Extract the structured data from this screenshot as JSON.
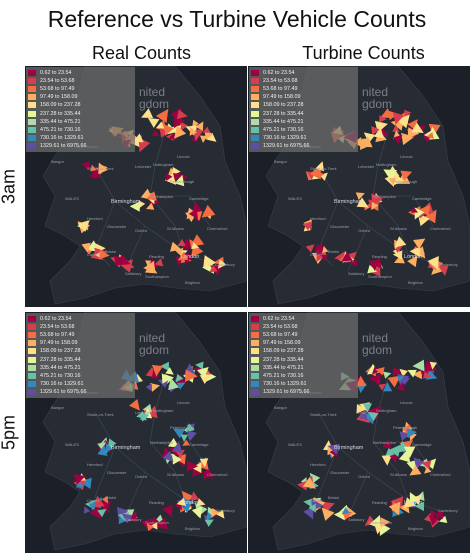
{
  "title": "Reference vs Turbine Vehicle Counts",
  "columns": [
    "Real Counts",
    "Turbine Counts"
  ],
  "rows": [
    "3am",
    "5pm"
  ],
  "legend": [
    {
      "label": "0.62 to 23.54",
      "color": "#9e0142"
    },
    {
      "label": "23.54 to 53.68",
      "color": "#d53e4f"
    },
    {
      "label": "53.68 to 97.49",
      "color": "#f46d43"
    },
    {
      "label": "97.49 to 158.09",
      "color": "#fdae61"
    },
    {
      "label": "158.09 to 237.28",
      "color": "#fee08b"
    },
    {
      "label": "237.28 to 335.44",
      "color": "#e6f598"
    },
    {
      "label": "335.44 to 475.21",
      "color": "#abdda4"
    },
    {
      "label": "475.21 to 730.16",
      "color": "#66c2a5"
    },
    {
      "label": "730.16 to 1329.61",
      "color": "#3288bd"
    },
    {
      "label": "1329.61 to 6975.66",
      "color": "#5e4fa2"
    }
  ],
  "map_text": {
    "uk_line1": "nited",
    "uk_line2": "gdom",
    "birmingham": "Birmingham",
    "london": "London",
    "wales": "WALES",
    "manchester": "Manchester",
    "stoke": "Stoke-on-Trent",
    "leicester": "Leicester",
    "lincoln": "Lincoln",
    "nottingham": "Nottingham",
    "peterborough": "Peterborough",
    "cambridge": "Cambridge",
    "oxford": "Oxford",
    "bristol": "Bristol",
    "cardiff": "Cardiff",
    "gloucester": "Gloucester",
    "hereford": "Hereford",
    "northampton": "Northampton",
    "chelmsford": "Chelmsford",
    "canterbury": "Canterbury",
    "reading": "Reading",
    "southampton": "Southampton",
    "salisbury": "Salisbury",
    "brighton": "Brighton",
    "bangor": "Bangor",
    "st_albans": "St Albans"
  }
}
